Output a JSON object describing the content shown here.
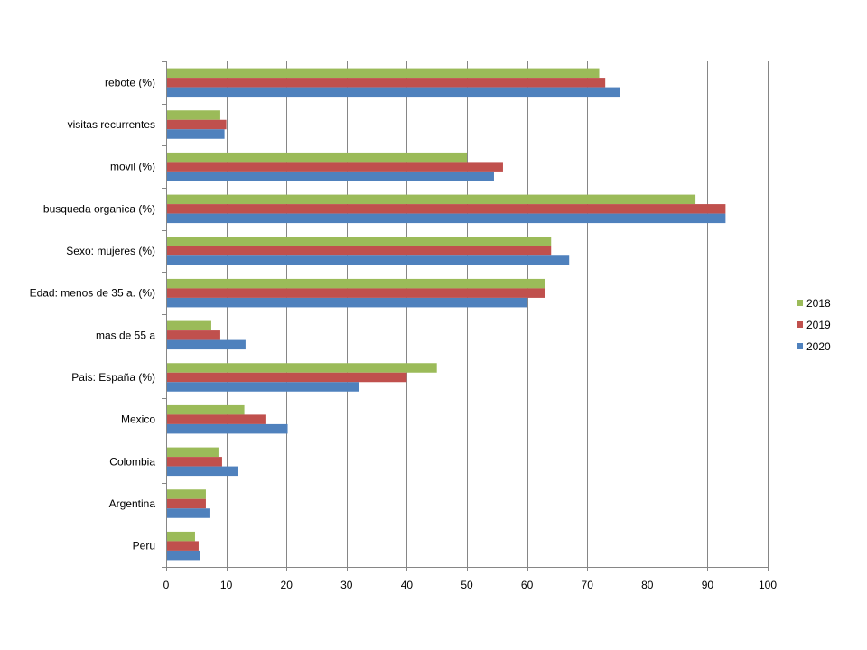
{
  "chart_data": {
    "type": "bar",
    "orientation": "horizontal",
    "title": "",
    "xlabel": "",
    "ylabel": "",
    "xlim": [
      0,
      100
    ],
    "x_ticks": [
      "0",
      "10",
      "20",
      "30",
      "40",
      "50",
      "60",
      "70",
      "80",
      "90",
      "100"
    ],
    "grid": true,
    "legend_position": "right",
    "categories": [
      "rebote (%)",
      "visitas recurrentes",
      "movil (%)",
      "busqueda organica (%)",
      "Sexo: mujeres (%)",
      "Edad: menos de 35 a. (%)",
      "mas de 55 a",
      "Pais: España (%)",
      "Mexico",
      "Colombia",
      "Argentina",
      "Peru"
    ],
    "series": [
      {
        "name": "2018",
        "color": "#9bbb59",
        "values": [
          72,
          9,
          50,
          88,
          64,
          63,
          7.5,
          45,
          13,
          8.7,
          6.6,
          4.8
        ]
      },
      {
        "name": "2019",
        "color": "#c0504d",
        "values": [
          73,
          10,
          56,
          93,
          64,
          63,
          9,
          40,
          16.5,
          9.3,
          6.6,
          5.4
        ]
      },
      {
        "name": "2020",
        "color": "#4f81bd",
        "values": [
          75.5,
          9.7,
          54.5,
          93,
          67,
          60,
          13.2,
          32,
          20.2,
          12,
          7.2,
          5.6
        ]
      }
    ]
  }
}
